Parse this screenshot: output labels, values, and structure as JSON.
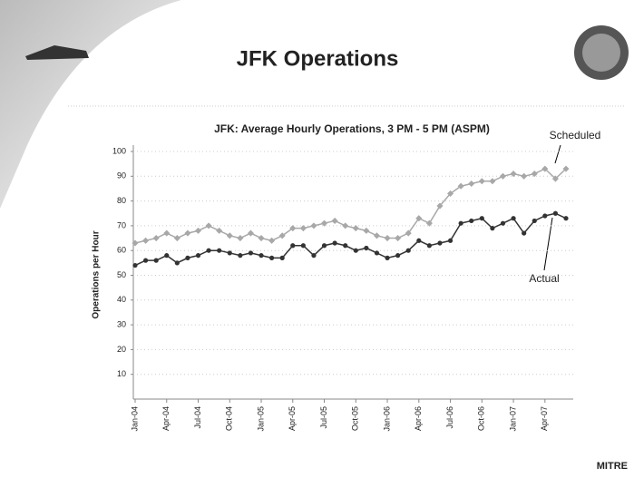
{
  "header": {
    "title": "JFK Operations",
    "footer": "MITRE"
  },
  "chart_data": {
    "type": "line",
    "title": "JFK: Average Hourly Operations, 3 PM - 5 PM (ASPM)",
    "ylabel": "Operations per Hour",
    "categories": [
      "Jan-04",
      null,
      null,
      "Apr-04",
      null,
      null,
      "Jul-04",
      null,
      null,
      "Oct-04",
      null,
      null,
      "Jan-05",
      null,
      null,
      "Apr-05",
      null,
      null,
      "Jul-05",
      null,
      null,
      "Oct-05",
      null,
      null,
      "Jan-06",
      null,
      null,
      "Apr-06",
      null,
      null,
      "Jul-06",
      null,
      null,
      "Oct-06",
      null,
      null,
      "Jan-07",
      null,
      null,
      "Apr-07",
      null,
      null
    ],
    "series": [
      {
        "name": "Scheduled",
        "color": "#a8a8a8",
        "values": [
          63,
          64,
          65,
          67,
          65,
          67,
          68,
          70,
          68,
          66,
          65,
          67,
          65,
          64,
          66,
          69,
          69,
          70,
          71,
          72,
          70,
          69,
          68,
          66,
          65,
          65,
          67,
          73,
          71,
          78,
          83,
          86,
          87,
          88,
          88,
          90,
          91,
          90,
          91,
          93,
          89,
          93
        ]
      },
      {
        "name": "Actual",
        "color": "#333333",
        "values": [
          54,
          56,
          56,
          58,
          55,
          57,
          58,
          60,
          60,
          59,
          58,
          59,
          58,
          57,
          57,
          62,
          62,
          58,
          62,
          63,
          62,
          60,
          61,
          59,
          57,
          58,
          60,
          64,
          62,
          63,
          64,
          71,
          72,
          73,
          69,
          71,
          73,
          67,
          72,
          74,
          75,
          73
        ]
      }
    ],
    "ylim": [
      0,
      100
    ],
    "yticks": [
      10,
      20,
      30,
      40,
      50,
      60,
      70,
      80,
      90,
      100
    ],
    "grid": true
  }
}
